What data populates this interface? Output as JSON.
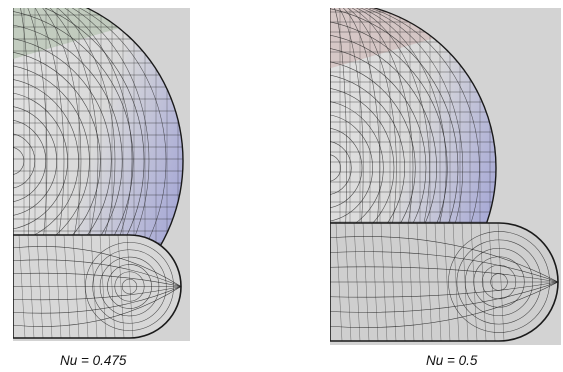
{
  "panels": [
    {
      "caption": "Nu = 0.475"
    },
    {
      "caption": "Nu = 0.5"
    }
  ],
  "colors": {
    "panel_bg": "#d3d3d3",
    "mesh_line": "#1a1a1a",
    "shade_green": "#9fb59a",
    "shade_blue": "#a7a9d6",
    "shade_pink": "#c9a9a7"
  }
}
